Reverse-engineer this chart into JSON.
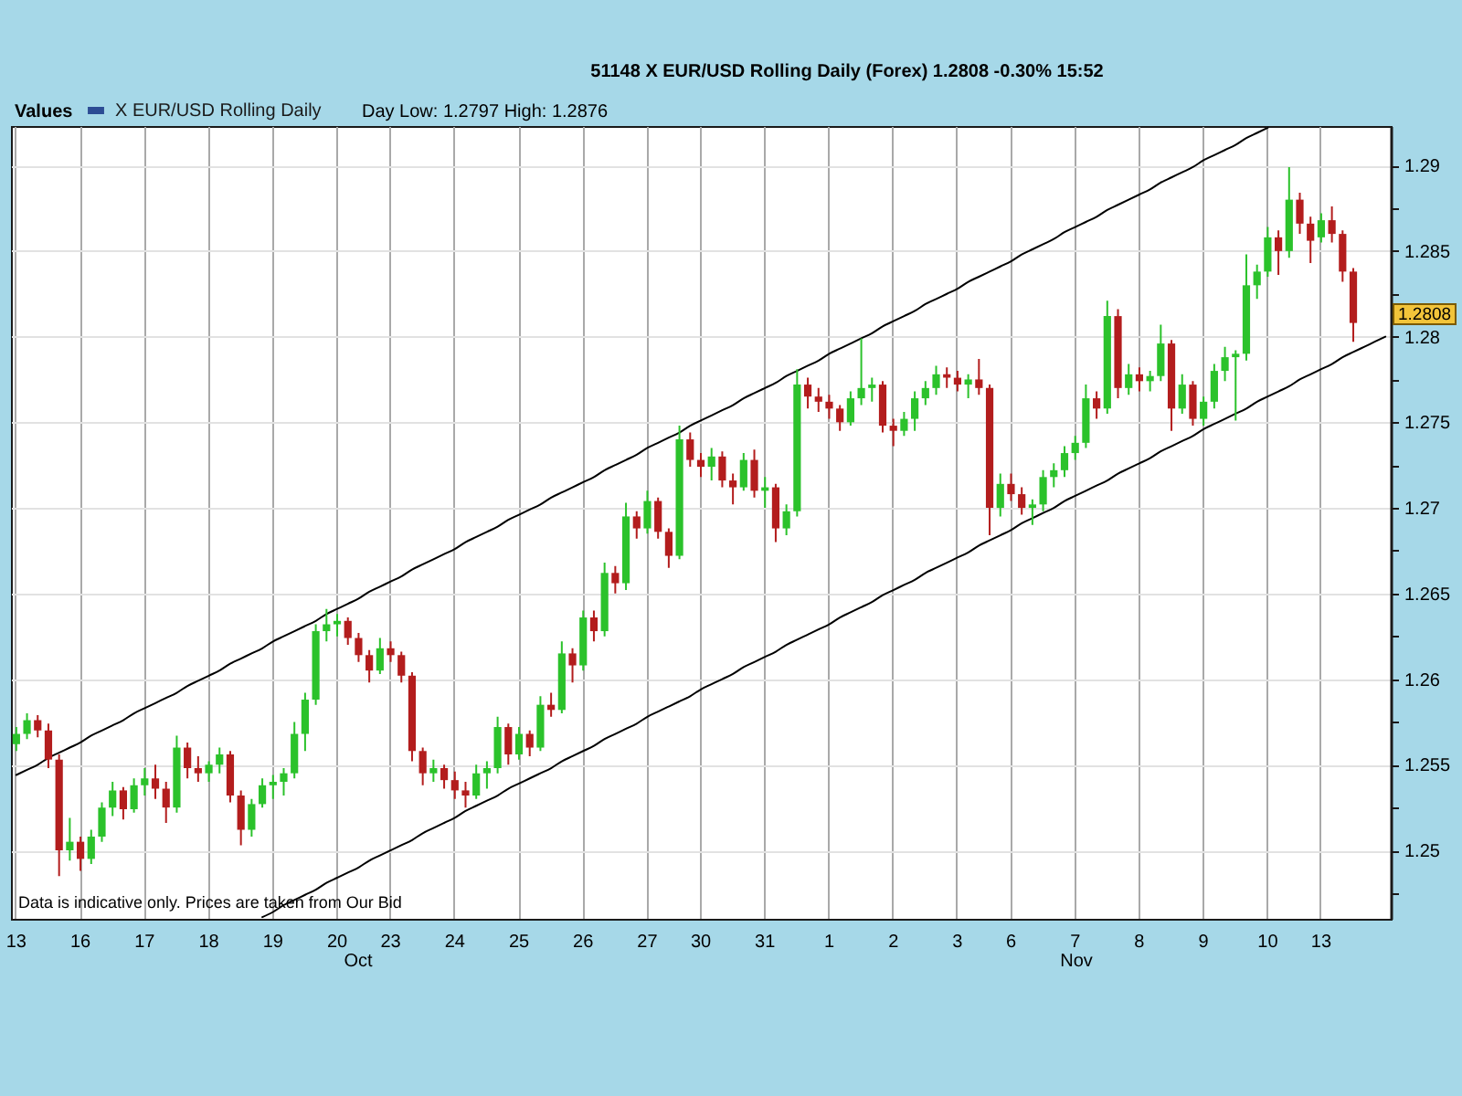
{
  "chart_data": {
    "type": "candlestick",
    "title": "51148 X EUR/USD Rolling Daily (Forex) 1.2808 -0.30% 15:52",
    "legend_title": "Values",
    "legend": "top left",
    "grid": true,
    "categories": [
      "13",
      null,
      null,
      null,
      null,
      null,
      "16",
      null,
      null,
      null,
      null,
      null,
      "17",
      null,
      null,
      null,
      null,
      null,
      "18",
      null,
      null,
      null,
      null,
      null,
      "19",
      null,
      null,
      null,
      null,
      null,
      "20",
      null,
      null,
      null,
      null,
      "23",
      null,
      null,
      null,
      null,
      null,
      "24",
      null,
      null,
      null,
      null,
      null,
      "25",
      null,
      null,
      null,
      null,
      null,
      "26",
      null,
      null,
      null,
      null,
      null,
      "27",
      null,
      null,
      null,
      null,
      "30",
      null,
      null,
      null,
      null,
      null,
      "31",
      null,
      null,
      null,
      null,
      null,
      "1",
      null,
      null,
      null,
      null,
      null,
      "2",
      null,
      null,
      null,
      null,
      null,
      "3",
      null,
      null,
      null,
      null,
      "6",
      null,
      null,
      null,
      null,
      null,
      "7",
      null,
      null,
      null,
      null,
      null,
      "8",
      null,
      null,
      null,
      null,
      null,
      "9",
      null,
      null,
      null,
      null,
      null,
      "10",
      null,
      null,
      null,
      null,
      "13",
      null,
      null,
      null,
      null,
      null,
      null
    ],
    "ylim": [
      1.246,
      1.2923
    ],
    "yticks": [
      {
        "value": 1.2475,
        "label": null
      },
      1.25,
      {
        "value": 1.2525,
        "label": null
      },
      1.255,
      {
        "value": 1.2575,
        "label": null
      },
      1.26,
      {
        "value": 1.2625,
        "label": null
      },
      1.265,
      {
        "value": 1.2675,
        "label": null
      },
      1.27,
      {
        "value": 1.2725,
        "label": null
      },
      1.275,
      {
        "value": 1.2775,
        "label": null
      },
      1.28,
      {
        "value": 1.2825,
        "label": null
      },
      1.285,
      {
        "value": 1.2875,
        "label": null
      },
      1.29
    ],
    "annotations": [
      "Day Low: 1.2797 High: 1.2876",
      "Data is indicative only. Prices are taken from Our Bid",
      "Oct",
      "Nov",
      "1.2808"
    ],
    "series": [
      {
        "type": "line",
        "color": "#000000",
        "values": [
          1.2544,
          1.2547,
          1.255,
          1.2554,
          1.2557,
          1.256,
          1.2563,
          1.2567,
          1.257,
          1.2573,
          1.2576,
          1.258,
          1.2583,
          1.2586,
          1.2589,
          1.2592,
          1.2596,
          1.2599,
          1.2602,
          1.2605,
          1.2609,
          1.2612,
          1.2615,
          1.2618,
          1.2622,
          1.2625,
          1.2628,
          1.2631,
          1.2634,
          1.2638,
          1.2641,
          1.2644,
          1.2647,
          1.2651,
          1.2654,
          1.2657,
          1.266,
          1.2664,
          1.2667,
          1.267,
          1.2673,
          1.2676,
          1.268,
          1.2683,
          1.2686,
          1.2689,
          1.2693,
          1.2696,
          1.2699,
          1.2702,
          1.2706,
          1.2709,
          1.2712,
          1.2715,
          1.2718,
          1.2722,
          1.2725,
          1.2728,
          1.2731,
          1.2735,
          1.2738,
          1.2741,
          1.2744,
          1.2748,
          1.2751,
          1.2754,
          1.2757,
          1.276,
          1.2764,
          1.2767,
          1.277,
          1.2773,
          1.2777,
          1.278,
          1.2783,
          1.2786,
          1.279,
          1.2793,
          1.2796,
          1.2799,
          1.2802,
          1.2806,
          1.2809,
          1.2812,
          1.2815,
          1.2819,
          1.2822,
          1.2825,
          1.2828,
          1.2832,
          1.2835,
          1.2838,
          1.2841,
          1.2844,
          1.2848,
          1.2851,
          1.2854,
          1.2857,
          1.2861,
          1.2864,
          1.2867,
          1.287,
          1.2874,
          1.2877,
          1.288,
          1.2883,
          1.2886,
          1.289,
          1.2893,
          1.2896,
          1.2899,
          1.2903,
          1.2906,
          1.2909,
          1.2912,
          1.2916,
          1.2919,
          1.2922,
          null,
          null,
          null,
          null,
          null,
          null,
          null,
          null,
          null,
          null,
          null
        ]
      },
      {
        "type": "line",
        "color": "#000000",
        "values": [
          null,
          null,
          null,
          null,
          null,
          null,
          null,
          null,
          null,
          null,
          null,
          null,
          null,
          null,
          null,
          null,
          null,
          null,
          null,
          null,
          null,
          null,
          null,
          1.2461,
          1.2464,
          1.2468,
          1.2471,
          1.2474,
          1.2477,
          1.2481,
          1.2484,
          1.2487,
          1.249,
          1.2494,
          1.2497,
          1.25,
          1.2503,
          1.2506,
          1.251,
          1.2513,
          1.2516,
          1.2519,
          1.2523,
          1.2526,
          1.2529,
          1.2532,
          1.2536,
          1.2539,
          1.2542,
          1.2545,
          1.2548,
          1.2552,
          1.2555,
          1.2558,
          1.2561,
          1.2565,
          1.2568,
          1.2571,
          1.2574,
          1.2578,
          1.2581,
          1.2584,
          1.2587,
          1.259,
          1.2594,
          1.2597,
          1.26,
          1.2603,
          1.2607,
          1.261,
          1.2613,
          1.2616,
          1.262,
          1.2623,
          1.2626,
          1.2629,
          1.2632,
          1.2636,
          1.2639,
          1.2642,
          1.2645,
          1.2649,
          1.2652,
          1.2655,
          1.2658,
          1.2662,
          1.2665,
          1.2668,
          1.2671,
          1.2674,
          1.2678,
          1.2681,
          1.2684,
          1.2687,
          1.2691,
          1.2694,
          1.2697,
          1.27,
          1.2704,
          1.2707,
          1.271,
          1.2713,
          1.2716,
          1.272,
          1.2723,
          1.2726,
          1.2729,
          1.2733,
          1.2736,
          1.2739,
          1.2742,
          1.2746,
          1.2749,
          1.2752,
          1.2755,
          1.2758,
          1.2762,
          1.2765,
          1.2768,
          1.2771,
          1.2775,
          1.2778,
          1.2781,
          1.2784,
          1.2788,
          1.2791,
          1.2794,
          1.2797,
          1.28
        ]
      },
      {
        "name": "X EUR/USD Rolling Daily",
        "color": "#2c4c94",
        "ohlc": [
          [
            1.2562,
            1.2572,
            1.2558,
            1.2568
          ],
          [
            1.2568,
            1.258,
            1.2565,
            1.2576
          ],
          [
            1.2576,
            1.2579,
            1.2566,
            1.257
          ],
          [
            1.257,
            1.2574,
            1.2548,
            1.2553
          ],
          [
            1.2553,
            1.2556,
            1.2485,
            1.25
          ],
          [
            1.25,
            1.2519,
            1.2494,
            1.2505
          ],
          [
            1.2505,
            1.2508,
            1.2488,
            1.2495
          ],
          [
            1.2495,
            1.2512,
            1.2492,
            1.2508
          ],
          [
            1.2508,
            1.2528,
            1.2505,
            1.2525
          ],
          [
            1.2525,
            1.254,
            1.252,
            1.2535
          ],
          [
            1.2535,
            1.2537,
            1.2518,
            1.2524
          ],
          [
            1.2524,
            1.2542,
            1.2522,
            1.2538
          ],
          [
            1.2538,
            1.2548,
            1.2532,
            1.2542
          ],
          [
            1.2542,
            1.255,
            1.253,
            1.2536
          ],
          [
            1.2536,
            1.254,
            1.2516,
            1.2525
          ],
          [
            1.2525,
            1.2567,
            1.2522,
            1.256
          ],
          [
            1.256,
            1.2563,
            1.2542,
            1.2548
          ],
          [
            1.2548,
            1.2555,
            1.254,
            1.2545
          ],
          [
            1.2545,
            1.2552,
            1.254,
            1.255
          ],
          [
            1.255,
            1.256,
            1.2545,
            1.2556
          ],
          [
            1.2556,
            1.2558,
            1.2528,
            1.2532
          ],
          [
            1.2532,
            1.2535,
            1.2503,
            1.2512
          ],
          [
            1.2512,
            1.253,
            1.2508,
            1.2527
          ],
          [
            1.2527,
            1.2542,
            1.2525,
            1.2538
          ],
          [
            1.2538,
            1.2544,
            1.253,
            1.254
          ],
          [
            1.254,
            1.2548,
            1.2532,
            1.2545
          ],
          [
            1.2545,
            1.2575,
            1.2542,
            1.2568
          ],
          [
            1.2568,
            1.2592,
            1.2558,
            1.2588
          ],
          [
            1.2588,
            1.2632,
            1.2585,
            1.2628
          ],
          [
            1.2628,
            1.2641,
            1.2622,
            1.2632
          ],
          [
            1.2632,
            1.2638,
            1.2625,
            1.2634
          ],
          [
            1.2634,
            1.2636,
            1.262,
            1.2624
          ],
          [
            1.2624,
            1.2627,
            1.261,
            1.2614
          ],
          [
            1.2614,
            1.2617,
            1.2598,
            1.2605
          ],
          [
            1.2605,
            1.2624,
            1.2603,
            1.2618
          ],
          [
            1.2618,
            1.2622,
            1.261,
            1.2614
          ],
          [
            1.2614,
            1.2616,
            1.2598,
            1.2602
          ],
          [
            1.2602,
            1.2604,
            1.2552,
            1.2558
          ],
          [
            1.2558,
            1.256,
            1.2538,
            1.2545
          ],
          [
            1.2545,
            1.2553,
            1.254,
            1.2548
          ],
          [
            1.2548,
            1.255,
            1.2536,
            1.2541
          ],
          [
            1.2541,
            1.2546,
            1.253,
            1.2535
          ],
          [
            1.2535,
            1.254,
            1.2525,
            1.2532
          ],
          [
            1.2532,
            1.255,
            1.253,
            1.2545
          ],
          [
            1.2545,
            1.2552,
            1.2536,
            1.2548
          ],
          [
            1.2548,
            1.2578,
            1.2545,
            1.2572
          ],
          [
            1.2572,
            1.2574,
            1.255,
            1.2556
          ],
          [
            1.2556,
            1.2572,
            1.2553,
            1.2568
          ],
          [
            1.2568,
            1.257,
            1.2555,
            1.256
          ],
          [
            1.256,
            1.259,
            1.2558,
            1.2585
          ],
          [
            1.2585,
            1.2592,
            1.2578,
            1.2582
          ],
          [
            1.2582,
            1.2622,
            1.258,
            1.2615
          ],
          [
            1.2615,
            1.2618,
            1.2598,
            1.2608
          ],
          [
            1.2608,
            1.264,
            1.2605,
            1.2636
          ],
          [
            1.2636,
            1.264,
            1.2622,
            1.2628
          ],
          [
            1.2628,
            1.2668,
            1.2625,
            1.2662
          ],
          [
            1.2662,
            1.2666,
            1.265,
            1.2656
          ],
          [
            1.2656,
            1.2703,
            1.2652,
            1.2695
          ],
          [
            1.2695,
            1.2698,
            1.2682,
            1.2688
          ],
          [
            1.2688,
            1.271,
            1.2685,
            1.2704
          ],
          [
            1.2704,
            1.2706,
            1.2682,
            1.2686
          ],
          [
            1.2686,
            1.2688,
            1.2665,
            1.2672
          ],
          [
            1.2672,
            1.2748,
            1.267,
            1.274
          ],
          [
            1.274,
            1.2744,
            1.2724,
            1.2728
          ],
          [
            1.2728,
            1.2732,
            1.2718,
            1.2724
          ],
          [
            1.2724,
            1.2735,
            1.2716,
            1.273
          ],
          [
            1.273,
            1.2733,
            1.2712,
            1.2716
          ],
          [
            1.2716,
            1.272,
            1.2702,
            1.2712
          ],
          [
            1.2712,
            1.2732,
            1.271,
            1.2728
          ],
          [
            1.2728,
            1.2734,
            1.2706,
            1.271
          ],
          [
            1.271,
            1.2718,
            1.27,
            1.2712
          ],
          [
            1.2712,
            1.2714,
            1.268,
            1.2688
          ],
          [
            1.2688,
            1.2702,
            1.2684,
            1.2698
          ],
          [
            1.2698,
            1.2781,
            1.2695,
            1.2772
          ],
          [
            1.2772,
            1.2776,
            1.2758,
            1.2765
          ],
          [
            1.2765,
            1.277,
            1.2756,
            1.2762
          ],
          [
            1.2762,
            1.2766,
            1.2752,
            1.2758
          ],
          [
            1.2758,
            1.276,
            1.2745,
            1.275
          ],
          [
            1.275,
            1.2768,
            1.2748,
            1.2764
          ],
          [
            1.2764,
            1.2799,
            1.276,
            1.277
          ],
          [
            1.277,
            1.2776,
            1.2762,
            1.2772
          ],
          [
            1.2772,
            1.2774,
            1.2744,
            1.2748
          ],
          [
            1.2748,
            1.2752,
            1.2736,
            1.2745
          ],
          [
            1.2745,
            1.2756,
            1.2742,
            1.2752
          ],
          [
            1.2752,
            1.2768,
            1.2745,
            1.2764
          ],
          [
            1.2764,
            1.2774,
            1.276,
            1.277
          ],
          [
            1.277,
            1.2783,
            1.2766,
            1.2778
          ],
          [
            1.2778,
            1.2782,
            1.277,
            1.2776
          ],
          [
            1.2776,
            1.278,
            1.2768,
            1.2772
          ],
          [
            1.2772,
            1.2778,
            1.2764,
            1.2775
          ],
          [
            1.2775,
            1.2787,
            1.2766,
            1.277
          ],
          [
            1.277,
            1.2772,
            1.2684,
            1.27
          ],
          [
            1.27,
            1.272,
            1.2695,
            1.2714
          ],
          [
            1.2714,
            1.272,
            1.2704,
            1.2708
          ],
          [
            1.2708,
            1.2712,
            1.2696,
            1.27
          ],
          [
            1.27,
            1.2705,
            1.269,
            1.2702
          ],
          [
            1.2702,
            1.2722,
            1.2698,
            1.2718
          ],
          [
            1.2718,
            1.2726,
            1.2712,
            1.2722
          ],
          [
            1.2722,
            1.2736,
            1.2718,
            1.2732
          ],
          [
            1.2732,
            1.2742,
            1.2728,
            1.2738
          ],
          [
            1.2738,
            1.2772,
            1.2735,
            1.2764
          ],
          [
            1.2764,
            1.2768,
            1.2752,
            1.2758
          ],
          [
            1.2758,
            1.2821,
            1.2755,
            1.2812
          ],
          [
            1.2812,
            1.2816,
            1.2764,
            1.277
          ],
          [
            1.277,
            1.2784,
            1.2766,
            1.2778
          ],
          [
            1.2778,
            1.2782,
            1.2768,
            1.2774
          ],
          [
            1.2774,
            1.278,
            1.2768,
            1.2777
          ],
          [
            1.2777,
            1.2807,
            1.2774,
            1.2796
          ],
          [
            1.2796,
            1.2798,
            1.2745,
            1.2758
          ],
          [
            1.2758,
            1.2778,
            1.2755,
            1.2772
          ],
          [
            1.2772,
            1.2774,
            1.2748,
            1.2752
          ],
          [
            1.2752,
            1.2765,
            1.2748,
            1.2762
          ],
          [
            1.2762,
            1.2784,
            1.2758,
            1.278
          ],
          [
            1.278,
            1.2794,
            1.2774,
            1.2788
          ],
          [
            1.2788,
            1.2792,
            1.2751,
            1.279
          ],
          [
            1.279,
            1.2848,
            1.2786,
            1.283
          ],
          [
            1.283,
            1.2842,
            1.2822,
            1.2838
          ],
          [
            1.2838,
            1.2864,
            1.2835,
            1.2858
          ],
          [
            1.2858,
            1.2862,
            1.2836,
            1.285
          ],
          [
            1.285,
            1.2899,
            1.2846,
            1.288
          ],
          [
            1.288,
            1.2884,
            1.286,
            1.2866
          ],
          [
            1.2866,
            1.287,
            1.2843,
            1.2856
          ],
          [
            1.2858,
            1.2872,
            1.2855,
            1.2868
          ],
          [
            1.2868,
            1.2876,
            1.2855,
            1.286
          ],
          [
            1.286,
            1.2862,
            1.2832,
            1.2838
          ],
          [
            1.2838,
            1.284,
            1.2797,
            1.2808
          ],
          null,
          null,
          null
        ],
        "colors": [
          "#2bc22b",
          "#2bc22b",
          "#b31d1d",
          "#b31d1d",
          "#b31d1d",
          "#2bc22b",
          "#b31d1d",
          "#2bc22b",
          "#2bc22b",
          "#2bc22b",
          "#b31d1d",
          "#2bc22b",
          "#2bc22b",
          "#b31d1d",
          "#b31d1d",
          "#2bc22b",
          "#b31d1d",
          "#b31d1d",
          "#2bc22b",
          "#2bc22b",
          "#b31d1d",
          "#b31d1d",
          "#2bc22b",
          "#2bc22b",
          "#2bc22b",
          "#2bc22b",
          "#2bc22b",
          "#2bc22b",
          "#2bc22b",
          "#2bc22b",
          "#2bc22b",
          "#b31d1d",
          "#b31d1d",
          "#b31d1d",
          "#2bc22b",
          "#b31d1d",
          "#b31d1d",
          "#b31d1d",
          "#b31d1d",
          "#2bc22b",
          "#b31d1d",
          "#b31d1d",
          "#b31d1d",
          "#2bc22b",
          "#2bc22b",
          "#2bc22b",
          "#b31d1d",
          "#2bc22b",
          "#b31d1d",
          "#2bc22b",
          "#b31d1d",
          "#2bc22b",
          "#b31d1d",
          "#2bc22b",
          "#b31d1d",
          "#2bc22b",
          "#b31d1d",
          "#2bc22b",
          "#b31d1d",
          "#2bc22b",
          "#b31d1d",
          "#b31d1d",
          "#2bc22b",
          "#b31d1d",
          "#b31d1d",
          "#2bc22b",
          "#b31d1d",
          "#b31d1d",
          "#2bc22b",
          "#b31d1d",
          "#2bc22b",
          "#b31d1d",
          "#2bc22b",
          "#2bc22b",
          "#b31d1d",
          "#b31d1d",
          "#b31d1d",
          "#b31d1d",
          "#2bc22b",
          "#2bc22b",
          "#2bc22b",
          "#b31d1d",
          "#b31d1d",
          "#2bc22b",
          "#2bc22b",
          "#2bc22b",
          "#2bc22b",
          "#b31d1d",
          "#b31d1d",
          "#2bc22b",
          "#b31d1d",
          "#b31d1d",
          "#2bc22b",
          "#b31d1d",
          "#b31d1d",
          "#2bc22b",
          "#2bc22b",
          "#2bc22b",
          "#2bc22b",
          "#2bc22b",
          "#2bc22b",
          "#b31d1d",
          "#2bc22b",
          "#b31d1d",
          "#2bc22b",
          "#b31d1d",
          "#2bc22b",
          "#2bc22b",
          "#b31d1d",
          "#2bc22b",
          "#b31d1d",
          "#2bc22b",
          "#2bc22b",
          "#2bc22b",
          "#2bc22b",
          "#2bc22b",
          "#2bc22b",
          "#2bc22b",
          "#b31d1d",
          "#2bc22b",
          "#b31d1d",
          "#b31d1d",
          "#2bc22b",
          "#b31d1d",
          "#b31d1d",
          "#b31d1d",
          null,
          null,
          null
        ]
      }
    ]
  }
}
